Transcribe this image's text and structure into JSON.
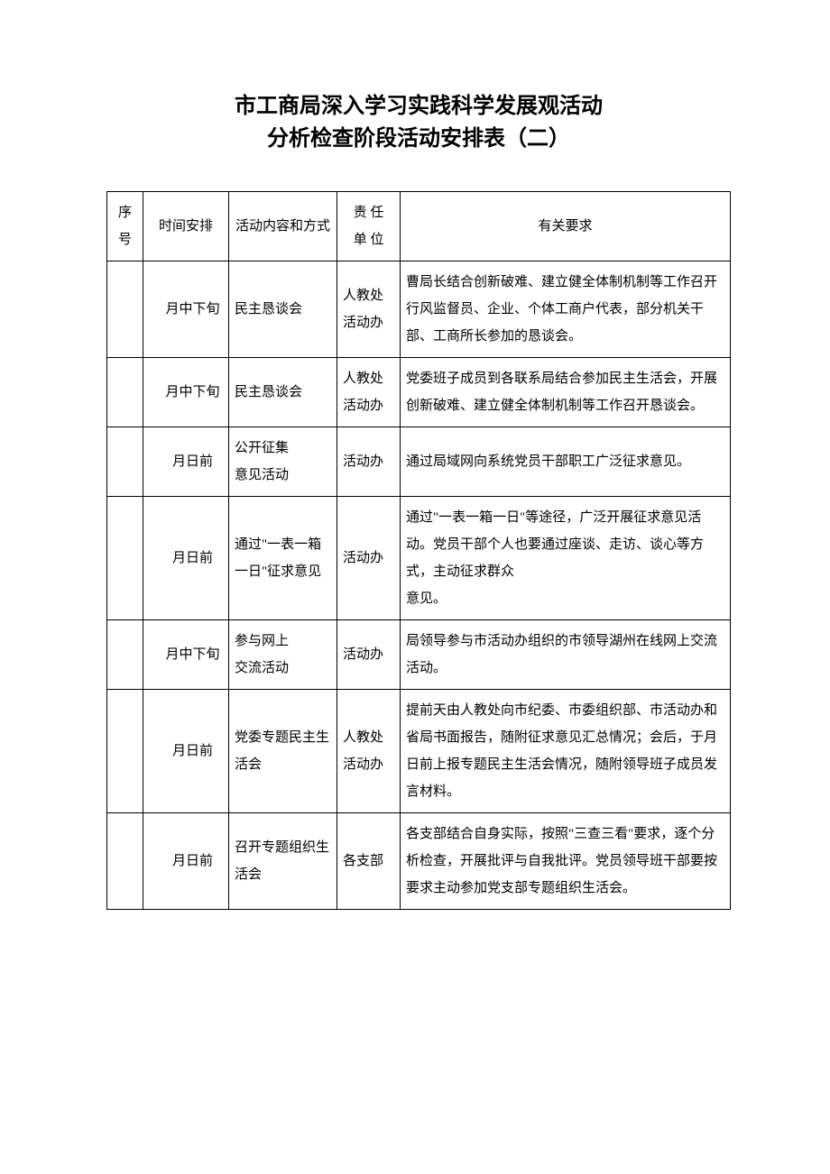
{
  "title": {
    "line1": "市工商局深入学习实践科学发展观活动",
    "line2": "分析检查阶段活动安排表（二）"
  },
  "headers": {
    "seq": "序号",
    "time": "时间安排",
    "activity": "活动内容和方式",
    "unit_line1": "责 任",
    "unit_line2": "单 位",
    "requirement": "有关要求"
  },
  "rows": [
    {
      "seq": "",
      "time": "月中下旬",
      "activity": "民主恳谈会",
      "unit": "人教处活动办",
      "requirement": "曹局长结合创新破难、建立健全体制机制等工作召开行风监督员、企业、个体工商户代表，部分机关干部、工商所长参加的恳谈会。"
    },
    {
      "seq": "",
      "time": "月中下旬",
      "activity": "民主恳谈会",
      "unit": "人教处活动办",
      "requirement": "党委班子成员到各联系局结合参加民主生活会，开展创新破难、建立健全体制机制等工作召开恳谈会。"
    },
    {
      "seq": "",
      "time": "月日前",
      "activity_line1": "公开征集",
      "activity_line2": "意见活动",
      "unit": "活动办",
      "requirement": "通过局域网向系统党员干部职工广泛征求意见。"
    },
    {
      "seq": "",
      "time": "月日前",
      "activity": "通过\"一表一箱一日\"征求意见",
      "unit": "活动办",
      "requirement_line1": "通过\"一表一箱一日\"等途径，广泛开展征求意见活动。党员干部个人也要通过座谈、走访、谈心等方式，主动征求群众",
      "requirement_line2": "意见。"
    },
    {
      "seq": "",
      "time": "月中下旬",
      "activity_line1": "参与网上",
      "activity_line2": "交流活动",
      "unit": "活动办",
      "requirement": "局领导参与市活动办组织的市领导湖州在线网上交流活动。"
    },
    {
      "seq": "",
      "time": "月日前",
      "activity": "党委专题民主生活会",
      "unit": "人教处活动办",
      "requirement": "提前天由人教处向市纪委、市委组织部、市活动办和省局书面报告，随附征求意见汇总情况；会后，于月日前上报专题民主生活会情况，随附领导班子成员发言材料。"
    },
    {
      "seq": "",
      "time": "月日前",
      "activity": "召开专题组织生活会",
      "unit": "各支部",
      "requirement": "各支部结合自身实际，按照\"三查三看\"要求，逐个分析检查，开展批评与自我批评。党员领导班干部要按要求主动参加党支部专题组织生活会。"
    }
  ]
}
